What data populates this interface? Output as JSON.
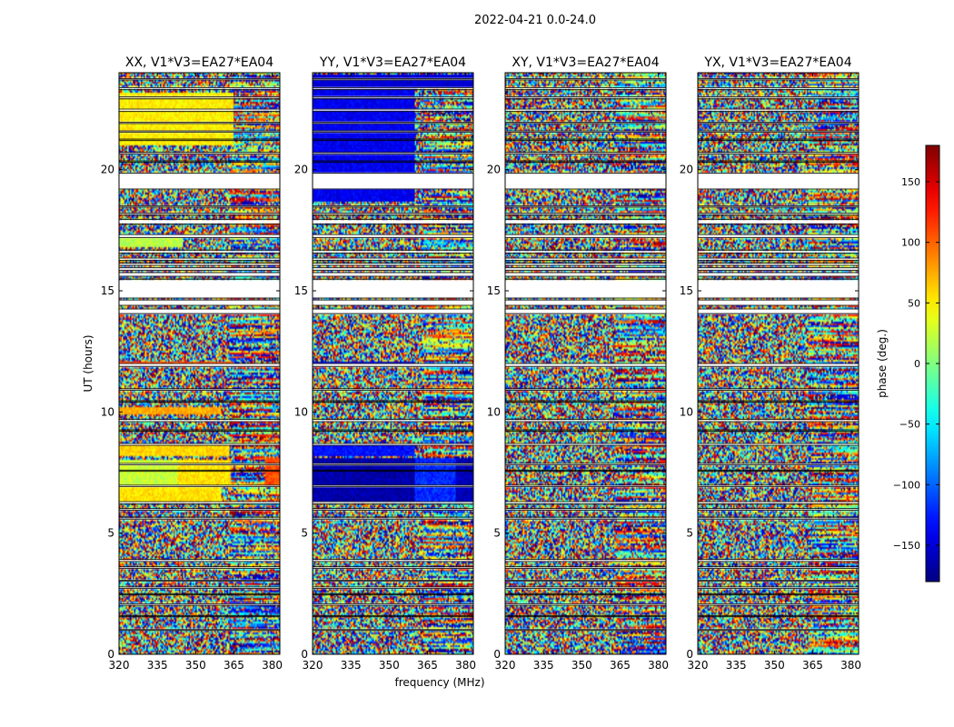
{
  "figure_title": "2022-04-21 0.0-24.0",
  "xlabel": "frequency (MHz)",
  "ylabel": "UT (hours)",
  "colorbar_label": "phase (deg.)",
  "chart_data": {
    "type": "heatmap",
    "colormap": "jet",
    "xlim": [
      320,
      383
    ],
    "ylim": [
      0,
      24
    ],
    "x_ticks": [
      320,
      335,
      350,
      365,
      380
    ],
    "y_ticks": [
      0,
      5,
      10,
      15,
      20
    ],
    "colorbar": {
      "vmin": -180,
      "vmax": 180,
      "ticks": [
        -150,
        -100,
        -50,
        0,
        50,
        100,
        150
      ]
    },
    "blank_hours": [
      [
        0.98,
        1.02
      ],
      [
        1.55,
        1.6
      ],
      [
        2.02,
        2.08
      ],
      [
        2.45,
        2.5
      ],
      [
        2.72,
        2.78
      ],
      [
        3.02,
        3.06
      ],
      [
        3.55,
        3.62
      ],
      [
        3.83,
        3.92
      ],
      [
        5.58,
        5.66
      ],
      [
        5.95,
        6.02
      ],
      [
        6.2,
        6.3
      ],
      [
        6.92,
        6.98
      ],
      [
        7.55,
        7.6
      ],
      [
        7.82,
        7.88
      ],
      [
        8.62,
        8.7
      ],
      [
        9.2,
        9.26
      ],
      [
        9.6,
        9.7
      ],
      [
        10.4,
        10.46
      ],
      [
        10.9,
        10.96
      ],
      [
        11.88,
        12.0
      ],
      [
        14.06,
        14.25
      ],
      [
        14.4,
        14.62
      ],
      [
        14.7,
        15.48
      ],
      [
        15.6,
        15.75
      ],
      [
        15.85,
        15.95
      ],
      [
        16.05,
        16.15
      ],
      [
        16.25,
        16.35
      ],
      [
        16.55,
        16.68
      ],
      [
        17.2,
        17.32
      ],
      [
        17.75,
        17.95
      ],
      [
        18.12,
        18.2
      ],
      [
        18.45,
        18.5
      ],
      [
        19.2,
        19.85
      ],
      [
        20.3,
        20.36
      ],
      [
        20.65,
        20.72
      ],
      [
        21.2,
        21.26
      ],
      [
        21.55,
        21.6
      ],
      [
        21.9,
        21.95
      ],
      [
        22.4,
        22.5
      ],
      [
        22.92,
        23.0
      ],
      [
        23.3,
        23.38
      ],
      [
        23.7,
        23.75
      ]
    ],
    "panels": [
      {
        "title": "XX, V1*V3=EA27*EA04",
        "coherent_bands": [
          {
            "hours": [
              7.0,
              8.0
            ],
            "freq": [
              320,
              343
            ],
            "phase": 25
          },
          {
            "hours": [
              6.3,
              7.0
            ],
            "freq": [
              320,
              360
            ],
            "phase": 55
          },
          {
            "hours": [
              7.0,
              8.0
            ],
            "freq": [
              343,
              364
            ],
            "phase": 55
          },
          {
            "hours": [
              7.0,
              8.1
            ],
            "freq": [
              377,
              383
            ],
            "phase": 110
          },
          {
            "hours": [
              8.2,
              8.6
            ],
            "freq": [
              320,
              363
            ],
            "phase": 60
          },
          {
            "hours": [
              9.9,
              10.2
            ],
            "freq": [
              320,
              360
            ],
            "phase": 75
          },
          {
            "hours": [
              11.85,
              12.05
            ],
            "freq": [
              320,
              365
            ],
            "phase": 110
          },
          {
            "hours": [
              21.0,
              23.2
            ],
            "freq": [
              320,
              365
            ],
            "phase": 50
          },
          {
            "hours": [
              22.7,
              23.1
            ],
            "freq": [
              345,
              365
            ],
            "phase": 100
          },
          {
            "hours": [
              16.8,
              17.2
            ],
            "freq": [
              320,
              345
            ],
            "phase": 20
          }
        ]
      },
      {
        "title": "YY, V1*V3=EA27*EA04",
        "coherent_bands": [
          {
            "hours": [
              6.3,
              8.1
            ],
            "freq": [
              320,
              360
            ],
            "phase": -165
          },
          {
            "hours": [
              6.3,
              8.1
            ],
            "freq": [
              360,
              376
            ],
            "phase": -120
          },
          {
            "hours": [
              6.3,
              8.1
            ],
            "freq": [
              376,
              383
            ],
            "phase": -160
          },
          {
            "hours": [
              8.2,
              8.6
            ],
            "freq": [
              320,
              360
            ],
            "phase": -130
          },
          {
            "hours": [
              11.85,
              12.05
            ],
            "freq": [
              320,
              360
            ],
            "phase": -150
          },
          {
            "hours": [
              18.7,
              23.3
            ],
            "freq": [
              320,
              360
            ],
            "phase": -140
          },
          {
            "hours": [
              23.3,
              23.9
            ],
            "freq": [
              320,
              383
            ],
            "phase": -150
          }
        ]
      },
      {
        "title": "XY, V1*V3=EA27*EA04",
        "coherent_bands": []
      },
      {
        "title": "YX, V1*V3=EA27*EA04",
        "coherent_bands": []
      }
    ]
  }
}
